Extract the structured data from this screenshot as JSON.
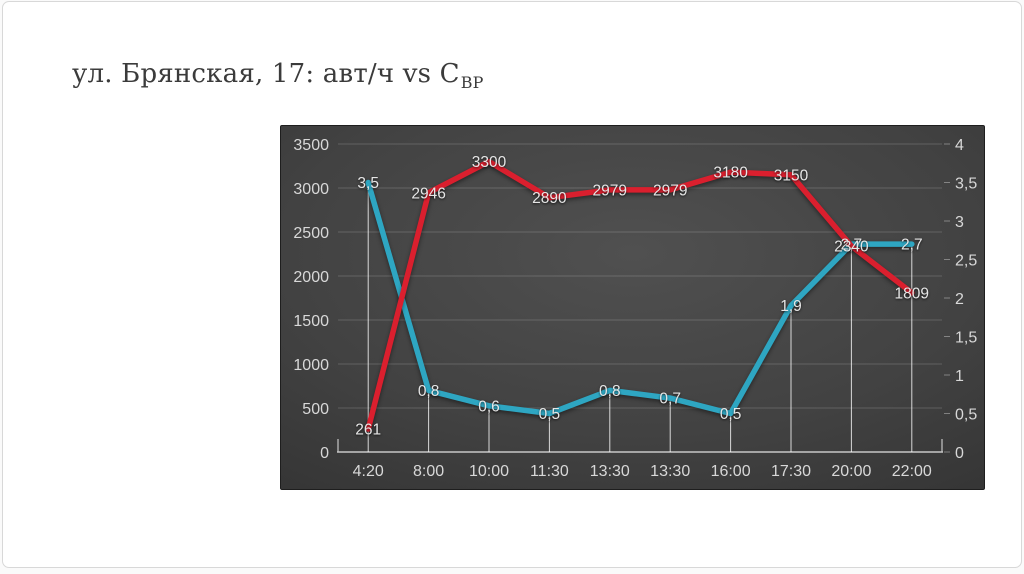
{
  "slide": {
    "title": "ул. Брянская, 17: авт/ч vs С",
    "title_subscript": "ВР"
  },
  "chart_data": {
    "type": "line",
    "title": "",
    "categories": [
      "4:20",
      "8:00",
      "10:00",
      "11:30",
      "13:30",
      "13:30",
      "16:00",
      "17:30",
      "20:00",
      "22:00"
    ],
    "series": [
      {
        "name": "СВР",
        "axis": "right",
        "color": "#2ea6c2",
        "values": [
          3.5,
          0.8,
          0.6,
          0.5,
          0.8,
          0.7,
          0.5,
          1.9,
          2.7,
          2.7
        ],
        "labels": [
          "3,5",
          "0,8",
          "0,6",
          "0,5",
          "0,8",
          "0,7",
          "0,5",
          "1,9",
          "2,7",
          "2,7"
        ]
      },
      {
        "name": "авт/ч",
        "axis": "left",
        "color": "#da1f2e",
        "values": [
          261,
          2946,
          3300,
          2890,
          2979,
          2979,
          3180,
          3150,
          2340,
          1809
        ],
        "labels": [
          "261",
          "2946",
          "3300",
          "2890",
          "2979",
          "2979",
          "3180",
          "3150",
          "2340",
          "1809"
        ]
      }
    ],
    "left_axis": {
      "min": 0,
      "max": 3500,
      "step": 500,
      "tick_labels": [
        "0",
        "500",
        "1000",
        "1500",
        "2000",
        "2500",
        "3000",
        "3500"
      ]
    },
    "right_axis": {
      "min": 0,
      "max": 4,
      "step": 0.5,
      "tick_labels": [
        "0",
        "0,5",
        "1",
        "1,5",
        "2",
        "2,5",
        "3",
        "3,5",
        "4"
      ]
    },
    "legend": "none",
    "grid": "horizontal",
    "drop_lines": true,
    "label_placement": "center"
  },
  "colors": {
    "red_series": "#da1f2e",
    "cyan_series": "#2ea6c2",
    "panel_bg_center": "#4e4e4e",
    "panel_bg_edge": "#252525",
    "chart_text": "#e6e6e6",
    "title_text": "#3b3b3b"
  }
}
